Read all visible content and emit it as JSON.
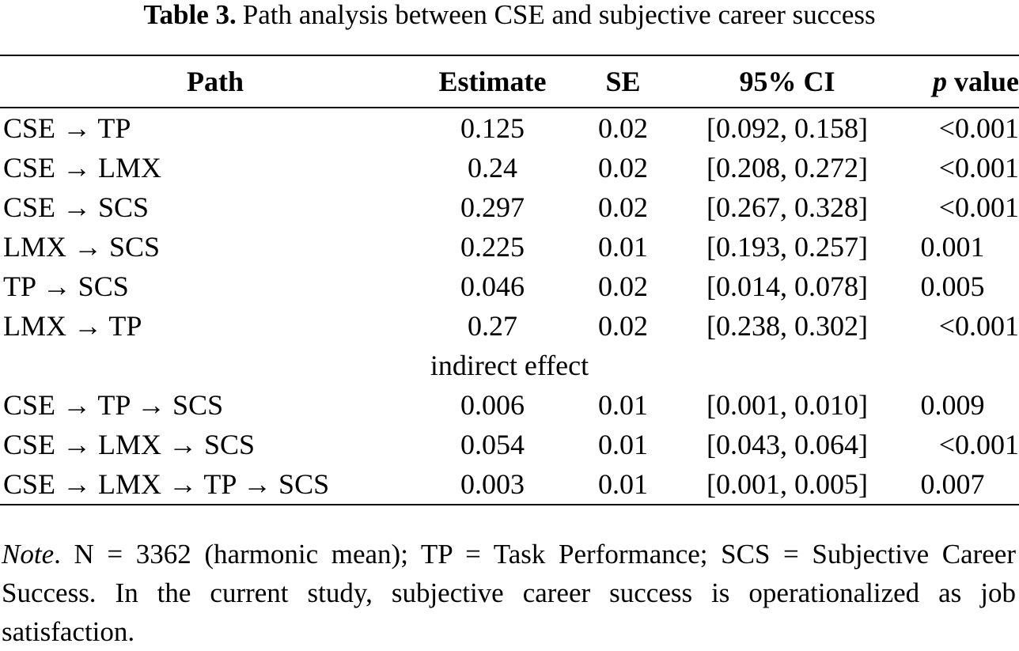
{
  "caption": {
    "label": "Table 3.",
    "text": "Path analysis between CSE and subjective career success"
  },
  "table": {
    "header": [
      "Path",
      "Estimate",
      "SE",
      "95% CI",
      {
        "italic": "p",
        "text": "value"
      }
    ],
    "rows": [
      [
        "CSE → TP",
        "0.125",
        "0.02",
        "[0.092, 0.158]",
        "<0.001"
      ],
      [
        "CSE → LMX",
        "0.24",
        "0.02",
        "[0.208, 0.272]",
        "<0.001"
      ],
      [
        "CSE → SCS",
        "0.297",
        "0.02",
        "[0.267, 0.328]",
        "<0.001"
      ],
      [
        "LMX → SCS",
        "0.225",
        "0.01",
        "[0.193, 0.257]",
        "0.001"
      ],
      [
        "TP → SCS",
        "0.046",
        "0.02",
        "[0.014, 0.078]",
        "0.005"
      ],
      [
        "LMX → TP",
        "0.27",
        "0.02",
        "[0.238, 0.302]",
        "<0.001"
      ]
    ],
    "section": "indirect effect",
    "section_rows": [
      [
        "CSE → TP → SCS",
        "0.006",
        "0.01",
        "[0.001, 0.010]",
        "0.009"
      ],
      [
        "CSE → LMX → SCS",
        "0.054",
        "0.01",
        "[0.043, 0.064]",
        "<0.001"
      ],
      [
        "CSE → LMX → TP → SCS",
        "0.003",
        "0.01",
        "[0.001, 0.005]",
        "0.007"
      ]
    ]
  },
  "note": {
    "label": "Note",
    "text": ". N = 3362 (harmonic mean); TP = Task Performance; SCS = Sub­jective Career Success. In the current study, subjective career success is operationalized as job satisfaction."
  }
}
